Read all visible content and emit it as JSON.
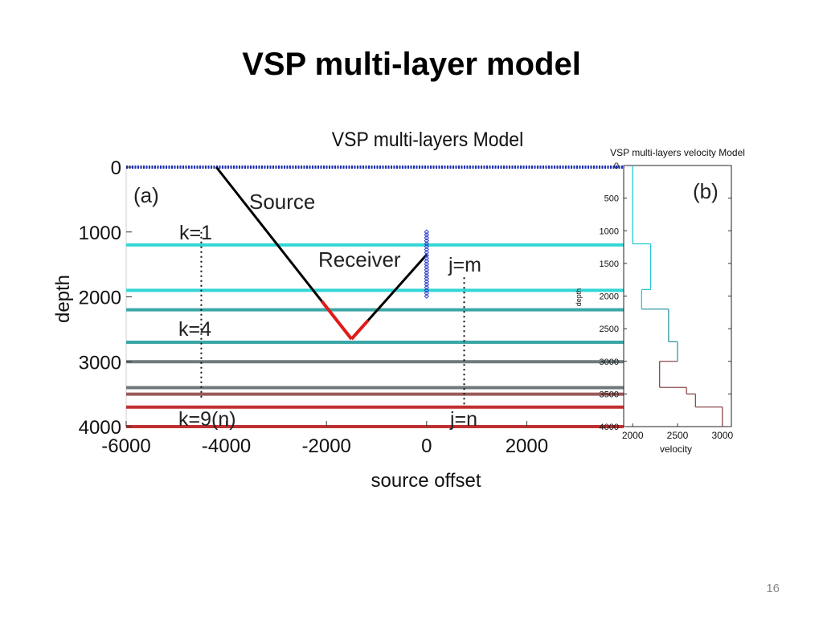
{
  "slide": {
    "title": "VSP multi-layer model",
    "page_number": "16"
  },
  "colors": {
    "layer_cyan": "#33d6d6",
    "layer_teal": "#3aa6a6",
    "layer_gray": "#6e7a7a",
    "layer_brown": "#9a5a5a",
    "layer_red": "#c03030",
    "surface_blue": "#1a2fb8",
    "receiver_blue": "#2a3fc8",
    "ray": "#000000",
    "ray_reflection": "#e01a1a",
    "velocity_line_cyan": "#25c6d6",
    "velocity_line_teal": "#2f9aa6",
    "velocity_line_brown": "#8a4a4a"
  },
  "chart_data": [
    {
      "type": "line",
      "title": "VSP multi-layers Model",
      "xlabel": "source offset",
      "ylabel": "depth",
      "xlim": [
        -6000,
        4000
      ],
      "ylim": [
        4000,
        0
      ],
      "y_inverted": true,
      "x_ticks": [
        "-6000",
        "-4000",
        "-2000",
        "0",
        "2000"
      ],
      "y_ticks": [
        "0",
        "1000",
        "2000",
        "3000",
        "4000"
      ],
      "panel_label": "(a)",
      "layers": [
        {
          "depth": 1200,
          "color": "cyan"
        },
        {
          "depth": 1900,
          "color": "cyan"
        },
        {
          "depth": 2200,
          "color": "teal"
        },
        {
          "depth": 2700,
          "color": "teal"
        },
        {
          "depth": 3000,
          "color": "gray"
        },
        {
          "depth": 3400,
          "color": "gray"
        },
        {
          "depth": 3500,
          "color": "brown"
        },
        {
          "depth": 3700,
          "color": "red"
        },
        {
          "depth": 4000,
          "color": "red"
        }
      ],
      "surface_depth": 0,
      "source": {
        "x": -4200,
        "y": 0
      },
      "reflection_point": {
        "x": -1500,
        "y": 2650
      },
      "receiver_top": {
        "x": 0,
        "y": 1350
      },
      "receiver_array": {
        "x": 0,
        "y_start": 1000,
        "y_end": 2000
      },
      "annotations": {
        "source": "Source",
        "receiver": "Receiver",
        "k1": "k=1",
        "k4": "k=4",
        "k9": "k=9(n)",
        "jm": "j=m",
        "jn": "j=n"
      },
      "dotted_guides": [
        {
          "x": -4500,
          "y_start": 1000,
          "y_end": 3600
        },
        {
          "x": 750,
          "y_start": 1700,
          "y_end": 3700
        }
      ]
    },
    {
      "type": "line",
      "title": "VSP multi-layers velocity Model",
      "xlabel": "velocity",
      "ylabel": "depth",
      "xlim": [
        1900,
        3100
      ],
      "ylim": [
        4000,
        0
      ],
      "y_inverted": true,
      "x_ticks": [
        "2000",
        "2500",
        "3000"
      ],
      "y_ticks": [
        "0",
        "500",
        "1000",
        "1500",
        "2000",
        "2500",
        "3000",
        "3500",
        "4000"
      ],
      "panel_label": "(b)",
      "velocity_profile": [
        {
          "velocity": 2000,
          "top": 0,
          "bottom": 1200
        },
        {
          "velocity": 2200,
          "top": 1200,
          "bottom": 1900
        },
        {
          "velocity": 2100,
          "top": 1900,
          "bottom": 2200
        },
        {
          "velocity": 2400,
          "top": 2200,
          "bottom": 2700
        },
        {
          "velocity": 2500,
          "top": 2700,
          "bottom": 3000
        },
        {
          "velocity": 2300,
          "top": 3000,
          "bottom": 3400
        },
        {
          "velocity": 2600,
          "top": 3400,
          "bottom": 3500
        },
        {
          "velocity": 2700,
          "top": 3500,
          "bottom": 3700
        },
        {
          "velocity": 3000,
          "top": 3700,
          "bottom": 4000
        }
      ]
    }
  ]
}
